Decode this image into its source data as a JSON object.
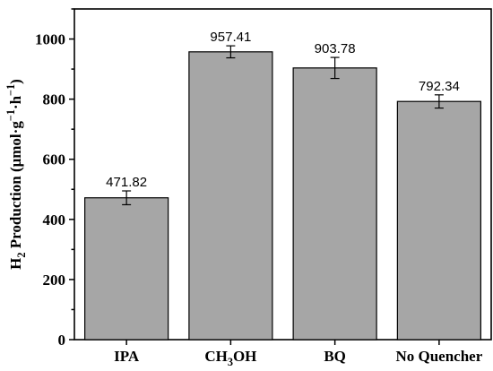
{
  "chart_data": {
    "type": "bar",
    "categories": [
      "IPA",
      "CH3OH",
      "BQ",
      "No Quencher"
    ],
    "category_labels": [
      [
        {
          "t": "IPA"
        }
      ],
      [
        {
          "t": "CH"
        },
        {
          "t": "3",
          "sub": true
        },
        {
          "t": "OH"
        }
      ],
      [
        {
          "t": "BQ"
        }
      ],
      [
        {
          "t": "No Quencher"
        }
      ]
    ],
    "values": [
      471.82,
      957.41,
      903.78,
      792.34
    ],
    "value_labels": [
      "471.82",
      "957.41",
      "903.78",
      "792.34"
    ],
    "errors": [
      23,
      20,
      35,
      22
    ],
    "ylabel": "H2 Production (μmol·g⁻¹·h⁻¹)",
    "ylabel_parts": [
      {
        "t": "H"
      },
      {
        "t": "2",
        "sub": true
      },
      {
        "t": " Production (μmol·g"
      },
      {
        "t": "−1",
        "sup": true
      },
      {
        "t": "·h"
      },
      {
        "t": "−1",
        "sup": true
      },
      {
        "t": ")"
      }
    ],
    "ylim": [
      0,
      1100
    ],
    "yticks": [
      0,
      200,
      400,
      600,
      800,
      1000
    ],
    "ytick_labels": [
      "0",
      "200",
      "400",
      "600",
      "800",
      "1000"
    ],
    "bar_color": "#a6a6a6",
    "edge_color": "#000000",
    "grid": false,
    "legend": "none"
  }
}
